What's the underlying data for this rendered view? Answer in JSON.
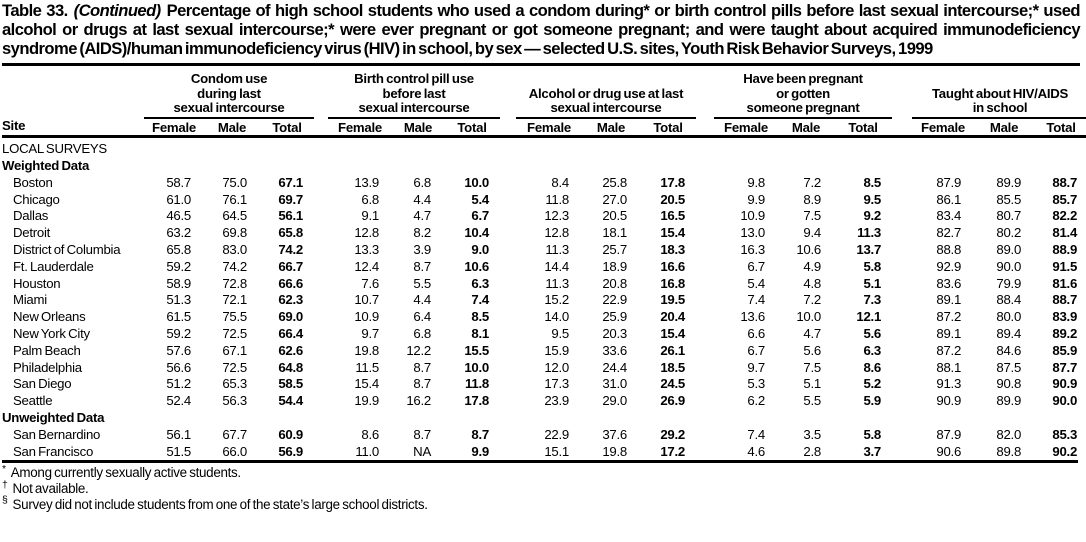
{
  "title": {
    "table_label": "Table 33.",
    "continued": "(Continued)",
    "text": "Percentage of high school students who used a condom during* or birth control pills before last sexual intercourse;* used alcohol or drugs at last sexual intercourse;* were ever pregnant or got someone pregnant; and were taught about acquired immunodeficiency syndrome (AIDS)/human immunodeficiency virus (HIV) in school, by sex — selected U.S. sites, Youth Risk Behavior Surveys, 1999"
  },
  "table": {
    "site_header": "Site",
    "sub_headers": [
      "Female",
      "Male",
      "Total"
    ],
    "groups": [
      {
        "name": "condom-use",
        "label_lines": [
          "Condom use",
          "during last",
          "sexual intercourse"
        ]
      },
      {
        "name": "birth-control-pill-use",
        "label_lines": [
          "Birth control pill use",
          "before last",
          "sexual intercourse"
        ]
      },
      {
        "name": "alcohol-drug-use",
        "label_lines": [
          "Alcohol or drug use at last",
          "sexual intercourse"
        ]
      },
      {
        "name": "pregnancy",
        "label_lines": [
          "Have been pregnant",
          "or gotten",
          "someone pregnant"
        ]
      },
      {
        "name": "taught-hiv-aids",
        "label_lines": [
          "Taught about HIV/AIDS",
          "in school"
        ]
      }
    ],
    "sections": [
      {
        "label": "LOCAL SURVEYS",
        "bold": false,
        "rows": []
      },
      {
        "label": "Weighted Data",
        "bold": true,
        "rows": [
          {
            "site": "Boston",
            "values": [
              "58.7",
              "75.0",
              "67.1",
              "13.9",
              "6.8",
              "10.0",
              "8.4",
              "25.8",
              "17.8",
              "9.8",
              "7.2",
              "8.5",
              "87.9",
              "89.9",
              "88.7"
            ]
          },
          {
            "site": "Chicago",
            "values": [
              "61.0",
              "76.1",
              "69.7",
              "6.8",
              "4.4",
              "5.4",
              "11.8",
              "27.0",
              "20.5",
              "9.9",
              "8.9",
              "9.5",
              "86.1",
              "85.5",
              "85.7"
            ]
          },
          {
            "site": "Dallas",
            "values": [
              "46.5",
              "64.5",
              "56.1",
              "9.1",
              "4.7",
              "6.7",
              "12.3",
              "20.5",
              "16.5",
              "10.9",
              "7.5",
              "9.2",
              "83.4",
              "80.7",
              "82.2"
            ]
          },
          {
            "site": "Detroit",
            "values": [
              "63.2",
              "69.8",
              "65.8",
              "12.8",
              "8.2",
              "10.4",
              "12.8",
              "18.1",
              "15.4",
              "13.0",
              "9.4",
              "11.3",
              "82.7",
              "80.2",
              "81.4"
            ]
          },
          {
            "site": "District of Columbia",
            "values": [
              "65.8",
              "83.0",
              "74.2",
              "13.3",
              "3.9",
              "9.0",
              "11.3",
              "25.7",
              "18.3",
              "16.3",
              "10.6",
              "13.7",
              "88.8",
              "89.0",
              "88.9"
            ]
          },
          {
            "site": "Ft. Lauderdale",
            "values": [
              "59.2",
              "74.2",
              "66.7",
              "12.4",
              "8.7",
              "10.6",
              "14.4",
              "18.9",
              "16.6",
              "6.7",
              "4.9",
              "5.8",
              "92.9",
              "90.0",
              "91.5"
            ]
          },
          {
            "site": "Houston",
            "values": [
              "58.9",
              "72.8",
              "66.6",
              "7.6",
              "5.5",
              "6.3",
              "11.3",
              "20.8",
              "16.8",
              "5.4",
              "4.8",
              "5.1",
              "83.6",
              "79.9",
              "81.6"
            ]
          },
          {
            "site": "Miami",
            "values": [
              "51.3",
              "72.1",
              "62.3",
              "10.7",
              "4.4",
              "7.4",
              "15.2",
              "22.9",
              "19.5",
              "7.4",
              "7.2",
              "7.3",
              "89.1",
              "88.4",
              "88.7"
            ]
          },
          {
            "site": "New Orleans",
            "values": [
              "61.5",
              "75.5",
              "69.0",
              "10.9",
              "6.4",
              "8.5",
              "14.0",
              "25.9",
              "20.4",
              "13.6",
              "10.0",
              "12.1",
              "87.2",
              "80.0",
              "83.9"
            ]
          },
          {
            "site": "New York City",
            "values": [
              "59.2",
              "72.5",
              "66.4",
              "9.7",
              "6.8",
              "8.1",
              "9.5",
              "20.3",
              "15.4",
              "6.6",
              "4.7",
              "5.6",
              "89.1",
              "89.4",
              "89.2"
            ]
          },
          {
            "site": "Palm Beach",
            "values": [
              "57.6",
              "67.1",
              "62.6",
              "19.8",
              "12.2",
              "15.5",
              "15.9",
              "33.6",
              "26.1",
              "6.7",
              "5.6",
              "6.3",
              "87.2",
              "84.6",
              "85.9"
            ]
          },
          {
            "site": "Philadelphia",
            "values": [
              "56.6",
              "72.5",
              "64.8",
              "11.5",
              "8.7",
              "10.0",
              "12.0",
              "24.4",
              "18.5",
              "9.7",
              "7.5",
              "8.6",
              "88.1",
              "87.5",
              "87.7"
            ]
          },
          {
            "site": "San Diego",
            "values": [
              "51.2",
              "65.3",
              "58.5",
              "15.4",
              "8.7",
              "11.8",
              "17.3",
              "31.0",
              "24.5",
              "5.3",
              "5.1",
              "5.2",
              "91.3",
              "90.8",
              "90.9"
            ]
          },
          {
            "site": "Seattle",
            "values": [
              "52.4",
              "56.3",
              "54.4",
              "19.9",
              "16.2",
              "17.8",
              "23.9",
              "29.0",
              "26.9",
              "6.2",
              "5.5",
              "5.9",
              "90.9",
              "89.9",
              "90.0"
            ]
          }
        ]
      },
      {
        "label": "Unweighted Data",
        "bold": true,
        "rows": [
          {
            "site": "San Bernardino",
            "values": [
              "56.1",
              "67.7",
              "60.9",
              "8.6",
              "8.7",
              "8.7",
              "22.9",
              "37.6",
              "29.2",
              "7.4",
              "3.5",
              "5.8",
              "87.9",
              "82.0",
              "85.3"
            ]
          },
          {
            "site": "San Francisco",
            "values": [
              "51.5",
              "66.0",
              "56.9",
              "11.0",
              "NA",
              "9.9",
              "15.1",
              "19.8",
              "17.2",
              "4.6",
              "2.8",
              "3.7",
              "90.6",
              "89.8",
              "90.2"
            ]
          }
        ]
      }
    ]
  },
  "footnotes": [
    {
      "marker": "*",
      "text": "Among currently sexually active students."
    },
    {
      "marker": "†",
      "text": "Not available."
    },
    {
      "marker": "§",
      "text": "Survey did not include students from one of the state’s large school districts."
    }
  ]
}
